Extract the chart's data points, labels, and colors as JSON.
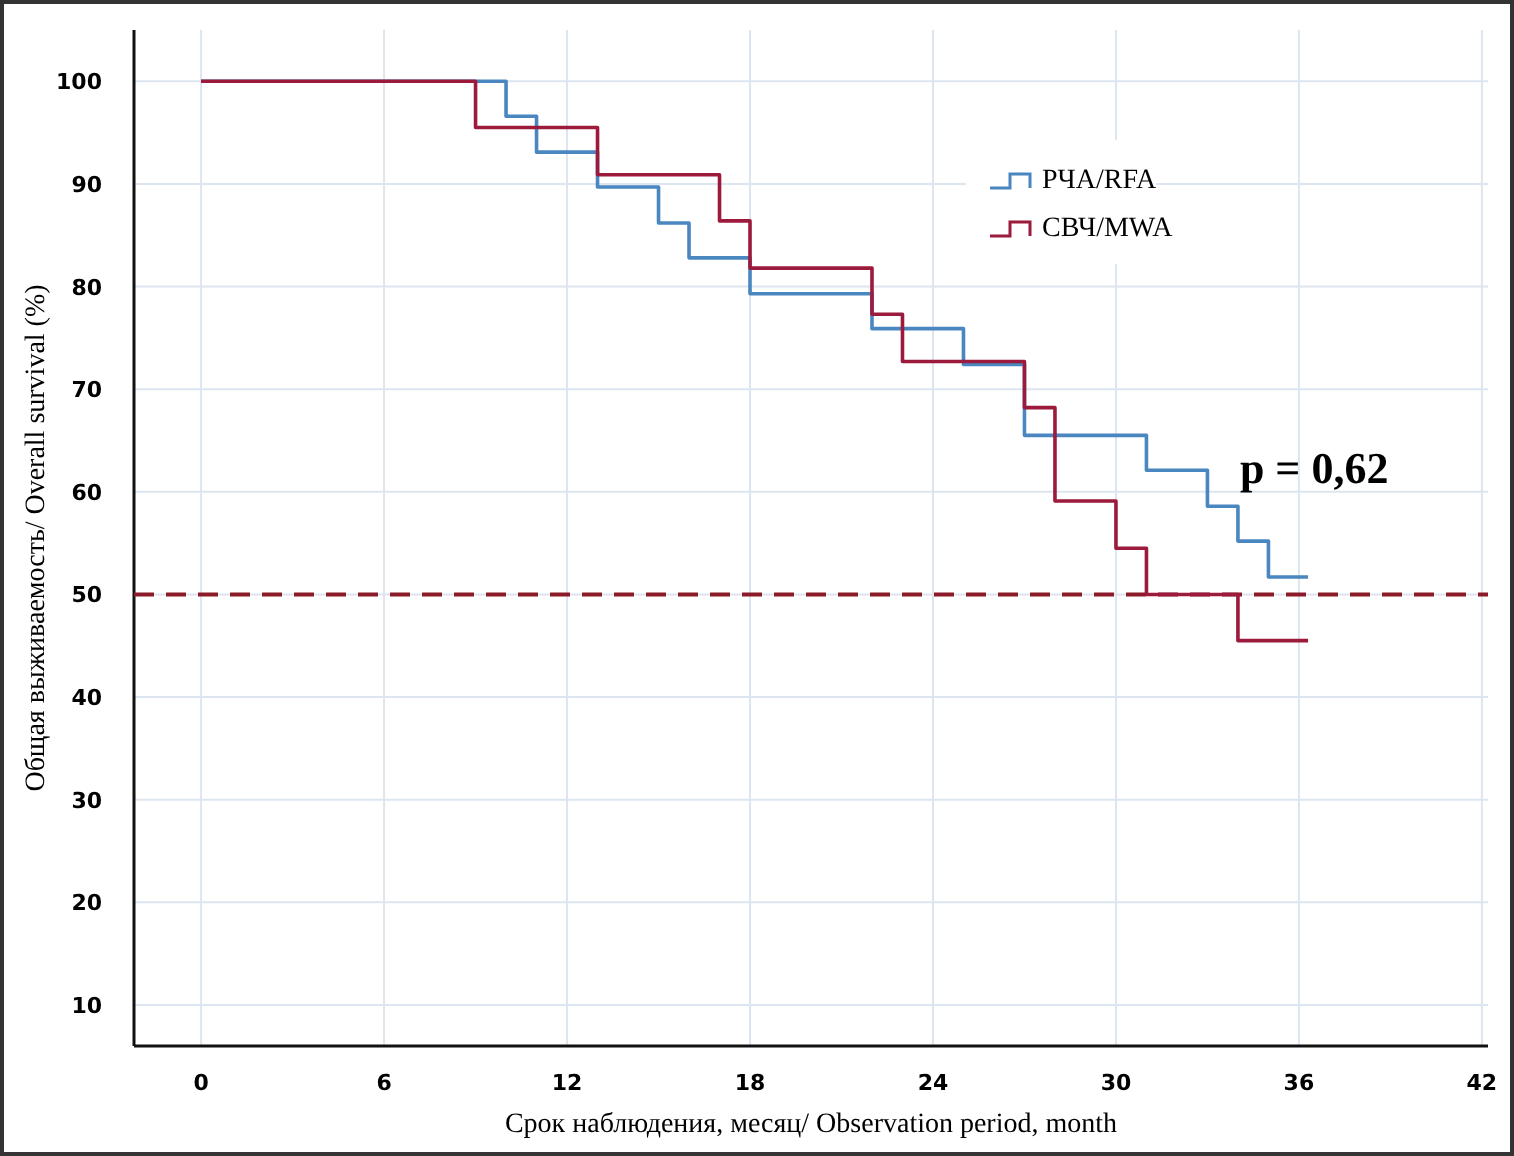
{
  "chart_data": {
    "type": "step",
    "xlabel": "Срок наблюдения, месяц/ Observation period, month",
    "ylabel": "Общая выживаемость/ Overall survival (%)",
    "xlim": [
      -2.2,
      42.2
    ],
    "xticks": [
      0,
      6,
      12,
      18,
      24,
      30,
      36,
      42
    ],
    "ylim": [
      6,
      105
    ],
    "yticks": [
      10,
      20,
      30,
      40,
      50,
      60,
      70,
      80,
      90,
      100
    ],
    "grid": true,
    "legend": "top right",
    "series": [
      {
        "name": "РЧА/RFA",
        "color": "#4a86c0",
        "x": [
          0,
          10,
          11,
          13,
          15,
          16,
          18,
          22,
          25,
          27,
          31,
          33,
          34,
          35,
          36.3
        ],
        "values": [
          100,
          96.6,
          93.1,
          89.7,
          86.2,
          82.8,
          79.3,
          75.9,
          72.4,
          65.5,
          62.1,
          58.6,
          55.2,
          51.7,
          51.7
        ]
      },
      {
        "name": "СВЧ/MWA",
        "color": "#9c1a3c",
        "x": [
          0,
          9,
          13,
          17,
          18,
          22,
          23,
          27,
          28,
          30,
          31,
          34,
          36.3
        ],
        "values": [
          100,
          95.5,
          90.9,
          86.4,
          81.8,
          77.3,
          72.7,
          68.2,
          59.1,
          54.5,
          50,
          45.5,
          45.5
        ]
      }
    ],
    "ref_lines": [
      {
        "axis": "y",
        "value": 50,
        "color": "#8b1a2a",
        "line_style": "dashed"
      }
    ],
    "annotations": [
      "p = 0,62"
    ]
  }
}
